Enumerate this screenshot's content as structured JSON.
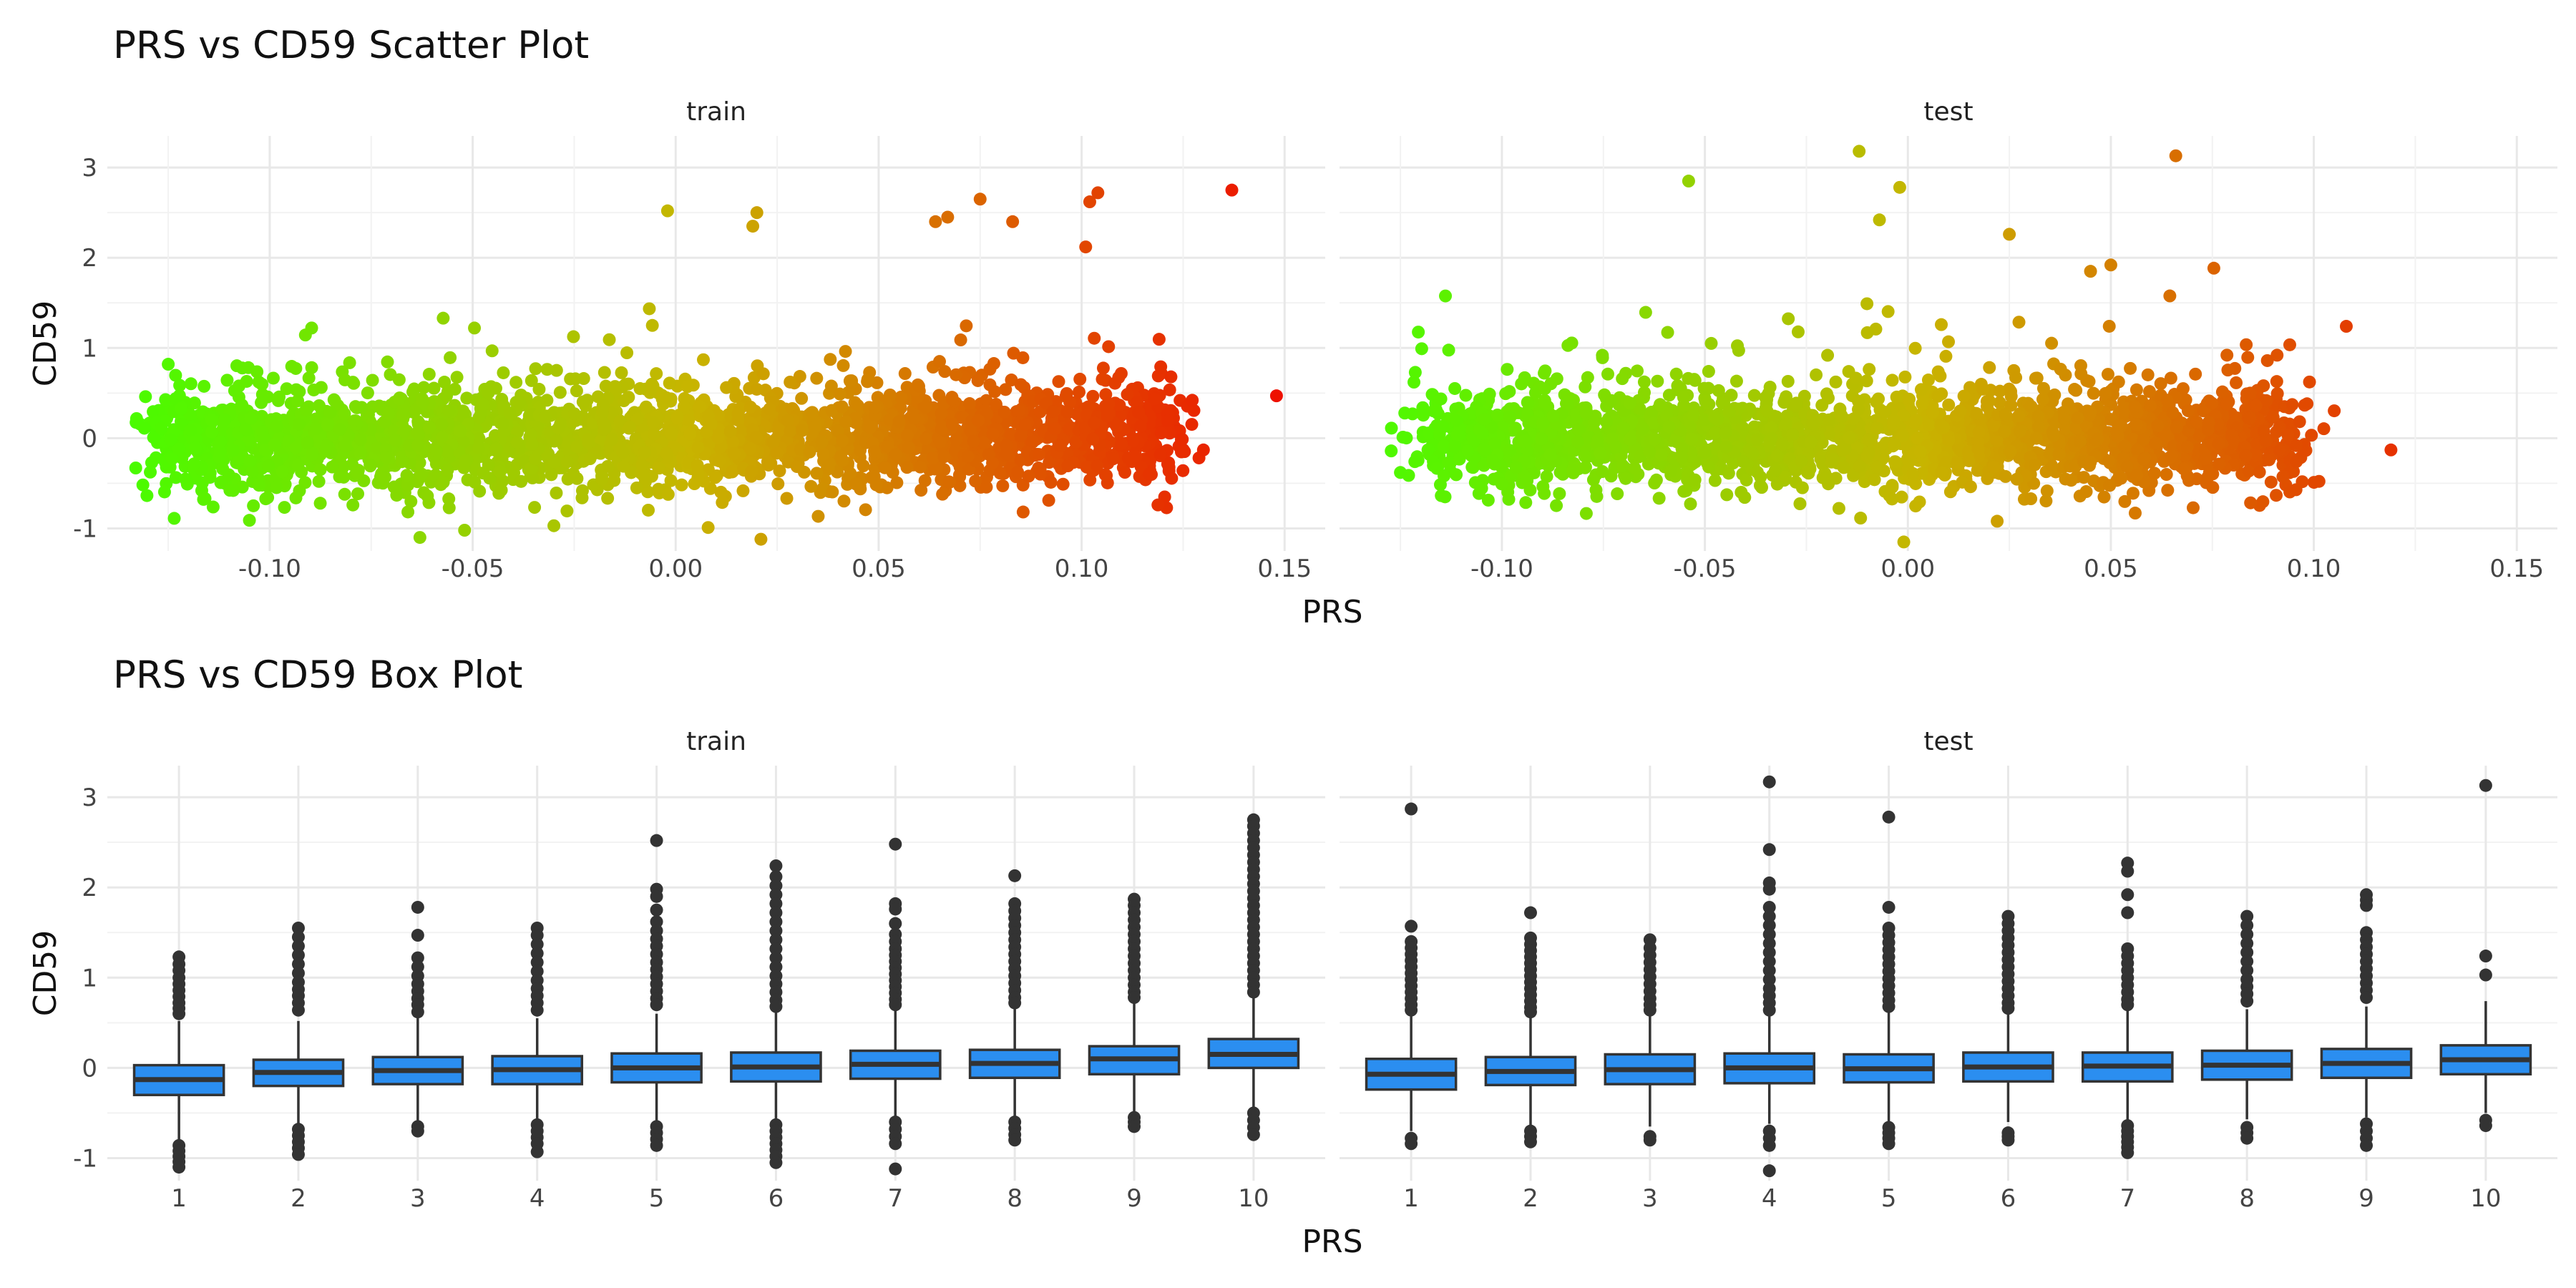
{
  "chart_data": [
    {
      "type": "scatter",
      "title": "PRS vs CD59 Scatter Plot",
      "xlabel": "PRS",
      "ylabel": "CD59",
      "xlim": [
        -0.14,
        0.16
      ],
      "ylim": [
        -1.25,
        3.35
      ],
      "x_ticks": [
        "-0.10",
        "-0.05",
        "0.00",
        "0.05",
        "0.10",
        "0.15"
      ],
      "x_tick_values": [
        -0.1,
        -0.05,
        0.0,
        0.05,
        0.1,
        0.15
      ],
      "y_ticks": [
        "-1",
        "0",
        "1",
        "2",
        "3"
      ],
      "y_tick_values": [
        -1,
        0,
        1,
        2,
        3
      ],
      "grid": true,
      "color_scale": {
        "low": "#44ff00",
        "mid": "#c8b400",
        "high": "#ee1100",
        "mapped_to": "PRS"
      },
      "panels": [
        {
          "name": "train",
          "x_range": [
            -0.133,
            0.148
          ],
          "main_trend": {
            "slope": 3.8,
            "noise_sd": 0.28,
            "n_points": 2600
          },
          "points": [
            {
              "x": 0.137,
              "y": 2.75
            },
            {
              "x": 0.148,
              "y": 0.47
            },
            {
              "x": 0.13,
              "y": -0.13
            },
            {
              "x": 0.104,
              "y": 2.72
            },
            {
              "x": 0.102,
              "y": 2.62
            },
            {
              "x": 0.101,
              "y": 2.12
            },
            {
              "x": 0.075,
              "y": 2.65
            },
            {
              "x": 0.067,
              "y": 2.45
            },
            {
              "x": 0.064,
              "y": 2.4
            },
            {
              "x": 0.083,
              "y": 2.4
            },
            {
              "x": 0.02,
              "y": 2.5
            },
            {
              "x": 0.019,
              "y": 2.35
            },
            {
              "x": -0.002,
              "y": 2.52
            },
            {
              "x": -0.063,
              "y": -1.1
            },
            {
              "x": 0.021,
              "y": -1.12
            },
            {
              "x": -0.105,
              "y": -0.91
            },
            {
              "x": -0.052,
              "y": -1.02
            },
            {
              "x": 0.008,
              "y": -0.99
            },
            {
              "x": -0.03,
              "y": -0.97
            },
            {
              "x": 0.122,
              "y": 0.68
            },
            {
              "x": -0.133,
              "y": -0.33
            }
          ]
        },
        {
          "name": "test",
          "x_range": [
            -0.125,
            0.12
          ],
          "main_trend": {
            "slope": 2.0,
            "noise_sd": 0.27,
            "n_points": 2200
          },
          "points": [
            {
              "x": -0.012,
              "y": 3.18
            },
            {
              "x": 0.066,
              "y": 3.13
            },
            {
              "x": -0.054,
              "y": 2.85
            },
            {
              "x": -0.002,
              "y": 2.78
            },
            {
              "x": -0.007,
              "y": 2.42
            },
            {
              "x": 0.025,
              "y": 2.26
            },
            {
              "x": 0.108,
              "y": 1.24
            },
            {
              "x": -0.125,
              "y": -0.38
            },
            {
              "x": -0.114,
              "y": -0.65
            },
            {
              "x": -0.001,
              "y": -1.15
            },
            {
              "x": 0.022,
              "y": -0.92
            },
            {
              "x": 0.056,
              "y": -0.83
            },
            {
              "x": 0.119,
              "y": -0.13
            },
            {
              "x": 0.045,
              "y": 1.85
            },
            {
              "x": 0.05,
              "y": 1.92
            }
          ]
        }
      ]
    },
    {
      "type": "box",
      "title": "PRS vs CD59 Box Plot",
      "xlabel": "PRS",
      "ylabel": "CD59",
      "categories": [
        "1",
        "2",
        "3",
        "4",
        "5",
        "6",
        "7",
        "8",
        "9",
        "10"
      ],
      "ylim": [
        -1.25,
        3.35
      ],
      "y_ticks": [
        "-1",
        "0",
        "1",
        "2",
        "3"
      ],
      "y_tick_values": [
        -1,
        0,
        1,
        2,
        3
      ],
      "grid": true,
      "fill_color": "#2b8ef0",
      "stroke_color": "#333333",
      "panels": [
        {
          "name": "train",
          "boxes": [
            {
              "q1": -0.3,
              "median": -0.13,
              "q3": 0.03,
              "whisker_low": -0.8,
              "whisker_high": 0.52,
              "outliers": [
                1.23,
                1.15,
                1.08,
                1.0,
                0.93,
                0.86,
                0.79,
                0.72,
                0.66,
                0.6,
                -0.86,
                -0.92,
                -0.98,
                -1.04,
                -1.1
              ]
            },
            {
              "q1": -0.2,
              "median": -0.05,
              "q3": 0.09,
              "whisker_low": -0.62,
              "whisker_high": 0.52,
              "outliers": [
                1.55,
                1.45,
                1.35,
                1.25,
                1.15,
                1.05,
                0.95,
                0.87,
                0.8,
                0.72,
                0.64,
                -0.68,
                -0.75,
                -0.82,
                -0.89,
                -0.96
              ]
            },
            {
              "q1": -0.18,
              "median": -0.03,
              "q3": 0.12,
              "whisker_low": -0.6,
              "whisker_high": 0.55,
              "outliers": [
                1.78,
                1.47,
                1.22,
                1.12,
                1.02,
                0.93,
                0.85,
                0.77,
                0.7,
                0.62,
                -0.65,
                -0.7
              ]
            },
            {
              "q1": -0.18,
              "median": -0.02,
              "q3": 0.13,
              "whisker_low": -0.6,
              "whisker_high": 0.55,
              "outliers": [
                1.55,
                1.47,
                1.37,
                1.27,
                1.17,
                1.07,
                0.97,
                0.88,
                0.8,
                0.72,
                0.64,
                -0.63,
                -0.7,
                -0.77,
                -0.84,
                -0.93
              ]
            },
            {
              "q1": -0.16,
              "median": 0.0,
              "q3": 0.16,
              "whisker_low": -0.6,
              "whisker_high": 0.6,
              "outliers": [
                2.52,
                1.98,
                1.9,
                1.75,
                1.62,
                1.52,
                1.43,
                1.35,
                1.26,
                1.17,
                1.09,
                1.01,
                0.93,
                0.85,
                0.77,
                0.7,
                -0.65,
                -0.72,
                -0.79,
                -0.86
              ]
            },
            {
              "q1": -0.15,
              "median": 0.01,
              "q3": 0.17,
              "whisker_low": -0.6,
              "whisker_high": 0.62,
              "outliers": [
                2.24,
                2.12,
                2.02,
                1.92,
                1.82,
                1.72,
                1.62,
                1.52,
                1.42,
                1.32,
                1.22,
                1.12,
                1.02,
                0.93,
                0.84,
                0.75,
                0.68,
                -0.63,
                -0.7,
                -0.77,
                -0.84,
                -0.91,
                -0.98,
                -1.05
              ]
            },
            {
              "q1": -0.12,
              "median": 0.04,
              "q3": 0.19,
              "whisker_low": -0.55,
              "whisker_high": 0.65,
              "outliers": [
                2.48,
                1.82,
                1.76,
                1.6,
                1.48,
                1.4,
                1.32,
                1.25,
                1.18,
                1.11,
                1.04,
                0.97,
                0.9,
                0.83,
                0.76,
                0.7,
                -0.6,
                -0.68,
                -0.76,
                -0.84,
                -1.12
              ]
            },
            {
              "q1": -0.11,
              "median": 0.05,
              "q3": 0.2,
              "whisker_low": -0.55,
              "whisker_high": 0.66,
              "outliers": [
                2.13,
                1.82,
                1.74,
                1.66,
                1.58,
                1.5,
                1.42,
                1.34,
                1.26,
                1.18,
                1.1,
                1.02,
                0.94,
                0.86,
                0.78,
                0.72,
                -0.6,
                -0.67,
                -0.74,
                -0.8
              ]
            },
            {
              "q1": -0.07,
              "median": 0.1,
              "q3": 0.24,
              "whisker_low": -0.5,
              "whisker_high": 0.75,
              "outliers": [
                1.87,
                1.8,
                1.72,
                1.64,
                1.56,
                1.48,
                1.4,
                1.32,
                1.24,
                1.16,
                1.08,
                1.0,
                0.92,
                0.84,
                0.78,
                -0.55,
                -0.6,
                -0.65
              ]
            },
            {
              "q1": 0.0,
              "median": 0.15,
              "q3": 0.32,
              "whisker_low": -0.45,
              "whisker_high": 0.78,
              "outliers": [
                2.75,
                2.68,
                2.6,
                2.52,
                2.44,
                2.36,
                2.28,
                2.2,
                2.12,
                2.04,
                1.96,
                1.88,
                1.8,
                1.72,
                1.64,
                1.56,
                1.48,
                1.4,
                1.32,
                1.24,
                1.16,
                1.08,
                1.0,
                0.92,
                0.84,
                -0.5,
                -0.58,
                -0.66,
                -0.74
              ]
            }
          ]
        },
        {
          "name": "test",
          "boxes": [
            {
              "q1": -0.24,
              "median": -0.07,
              "q3": 0.1,
              "whisker_low": -0.7,
              "whisker_high": 0.6,
              "outliers": [
                2.87,
                1.57,
                1.4,
                1.33,
                1.26,
                1.19,
                1.12,
                1.05,
                0.98,
                0.91,
                0.84,
                0.77,
                0.7,
                0.64,
                -0.78,
                -0.84
              ]
            },
            {
              "q1": -0.19,
              "median": -0.04,
              "q3": 0.12,
              "whisker_low": -0.65,
              "whisker_high": 0.58,
              "outliers": [
                1.72,
                1.44,
                1.37,
                1.3,
                1.23,
                1.16,
                1.09,
                1.02,
                0.95,
                0.88,
                0.81,
                0.74,
                0.67,
                0.62,
                -0.7,
                -0.76,
                -0.82
              ]
            },
            {
              "q1": -0.18,
              "median": -0.02,
              "q3": 0.15,
              "whisker_low": -0.65,
              "whisker_high": 0.6,
              "outliers": [
                1.42,
                1.33,
                1.25,
                1.17,
                1.09,
                1.01,
                0.93,
                0.85,
                0.77,
                0.7,
                0.64,
                -0.76,
                -0.8
              ]
            },
            {
              "q1": -0.17,
              "median": 0.0,
              "q3": 0.16,
              "whisker_low": -0.62,
              "whisker_high": 0.6,
              "outliers": [
                3.17,
                2.42,
                2.05,
                1.98,
                1.78,
                1.68,
                1.58,
                1.48,
                1.38,
                1.28,
                1.18,
                1.08,
                0.98,
                0.88,
                0.8,
                0.72,
                0.64,
                -0.7,
                -0.78,
                -0.86,
                -1.14
              ]
            },
            {
              "q1": -0.16,
              "median": -0.01,
              "q3": 0.15,
              "whisker_low": -0.62,
              "whisker_high": 0.62,
              "outliers": [
                2.78,
                1.78,
                1.55,
                1.47,
                1.39,
                1.31,
                1.23,
                1.15,
                1.07,
                0.99,
                0.91,
                0.83,
                0.75,
                0.68,
                -0.66,
                -0.72,
                -0.78,
                -0.84
              ]
            },
            {
              "q1": -0.15,
              "median": 0.01,
              "q3": 0.17,
              "whisker_low": -0.6,
              "whisker_high": 0.62,
              "outliers": [
                1.68,
                1.6,
                1.52,
                1.44,
                1.36,
                1.28,
                1.2,
                1.12,
                1.04,
                0.96,
                0.88,
                0.8,
                0.72,
                0.66,
                -0.72,
                -0.76,
                -0.8
              ]
            },
            {
              "q1": -0.15,
              "median": 0.02,
              "q3": 0.17,
              "whisker_low": -0.6,
              "whisker_high": 0.64,
              "outliers": [
                2.27,
                2.18,
                1.92,
                1.72,
                1.32,
                1.24,
                1.16,
                1.08,
                1.0,
                0.92,
                0.84,
                0.76,
                0.7,
                -0.64,
                -0.7,
                -0.76,
                -0.82,
                -0.88,
                -0.94
              ]
            },
            {
              "q1": -0.13,
              "median": 0.03,
              "q3": 0.19,
              "whisker_low": -0.57,
              "whisker_high": 0.65,
              "outliers": [
                1.68,
                1.58,
                1.48,
                1.38,
                1.28,
                1.18,
                1.08,
                0.98,
                0.9,
                0.82,
                0.74,
                -0.66,
                -0.72,
                -0.78
              ]
            },
            {
              "q1": -0.11,
              "median": 0.05,
              "q3": 0.21,
              "whisker_low": -0.55,
              "whisker_high": 0.68,
              "outliers": [
                1.92,
                1.86,
                1.8,
                1.5,
                1.42,
                1.34,
                1.26,
                1.18,
                1.1,
                1.02,
                0.94,
                0.86,
                0.78,
                -0.62,
                -0.7,
                -0.78,
                -0.86
              ]
            },
            {
              "q1": -0.07,
              "median": 0.09,
              "q3": 0.25,
              "whisker_low": -0.5,
              "whisker_high": 0.74,
              "outliers": [
                3.13,
                1.24,
                1.03,
                -0.58,
                -0.64
              ]
            }
          ]
        }
      ]
    }
  ]
}
